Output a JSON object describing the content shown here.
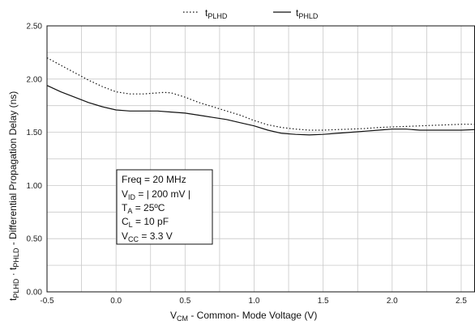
{
  "chart_data": {
    "type": "line",
    "xlim": [
      -0.5,
      2.6
    ],
    "ylim": [
      0.0,
      2.5
    ],
    "x_ticks": [
      -0.5,
      0.0,
      0.5,
      1.0,
      1.5,
      2.0,
      2.5
    ],
    "x_tick_labels": [
      "-0.5",
      "0.0",
      "0.5",
      "1.0",
      "1.5",
      "2.0",
      "2.5"
    ],
    "y_ticks": [
      0.0,
      0.5,
      1.0,
      1.5,
      2.0,
      2.5
    ],
    "y_tick_labels": [
      "0.00",
      "0.50",
      "1.00",
      "1.50",
      "2.00",
      "2.50"
    ],
    "grid": true,
    "xlabel": {
      "main": "V",
      "sub": "CM",
      "rest": " - Common- Mode Voltage (V)"
    },
    "ylabel": {
      "p1": "t",
      "s1": "PLHD",
      "p2": " · t",
      "s2": "PHLD",
      "rest": " - Differential Propagation Delay (ns)"
    },
    "legend_position": "top-center",
    "series": [
      {
        "name": {
          "main": "t",
          "sub": "PLHD"
        },
        "style": "dotted",
        "x": [
          -0.5,
          -0.4,
          -0.3,
          -0.2,
          -0.1,
          0.0,
          0.1,
          0.2,
          0.3,
          0.35,
          0.4,
          0.5,
          0.6,
          0.7,
          0.8,
          0.9,
          1.0,
          1.1,
          1.2,
          1.3,
          1.4,
          1.5,
          1.6,
          1.7,
          1.8,
          1.9,
          2.0,
          2.1,
          2.2,
          2.3,
          2.4,
          2.5,
          2.6
        ],
        "y": [
          2.2,
          2.13,
          2.06,
          1.99,
          1.93,
          1.88,
          1.86,
          1.86,
          1.87,
          1.875,
          1.87,
          1.83,
          1.78,
          1.74,
          1.7,
          1.66,
          1.61,
          1.57,
          1.545,
          1.53,
          1.52,
          1.52,
          1.525,
          1.53,
          1.535,
          1.545,
          1.55,
          1.555,
          1.56,
          1.565,
          1.57,
          1.575,
          1.575
        ]
      },
      {
        "name": {
          "main": "t",
          "sub": "PHLD"
        },
        "style": "solid",
        "x": [
          -0.5,
          -0.4,
          -0.3,
          -0.2,
          -0.1,
          0.0,
          0.1,
          0.2,
          0.3,
          0.4,
          0.5,
          0.6,
          0.7,
          0.8,
          0.9,
          1.0,
          1.1,
          1.2,
          1.3,
          1.4,
          1.5,
          1.6,
          1.7,
          1.8,
          1.9,
          2.0,
          2.1,
          2.2,
          2.3,
          2.4,
          2.5,
          2.6
        ],
        "y": [
          1.94,
          1.88,
          1.83,
          1.78,
          1.74,
          1.71,
          1.7,
          1.7,
          1.7,
          1.69,
          1.68,
          1.66,
          1.64,
          1.62,
          1.59,
          1.56,
          1.52,
          1.49,
          1.48,
          1.475,
          1.48,
          1.49,
          1.5,
          1.51,
          1.52,
          1.53,
          1.53,
          1.52,
          1.52,
          1.52,
          1.52,
          1.525
        ]
      }
    ]
  },
  "conditions": [
    {
      "main": "Freq = 20 MHz",
      "sub": "",
      "rest": ""
    },
    {
      "main": "V",
      "sub": "ID",
      "rest": " = | 200 mV |"
    },
    {
      "main": "T",
      "sub": "A",
      "rest": "   = 25ºC"
    },
    {
      "main": "C",
      "sub": "L",
      "rest": "   = 10 pF"
    },
    {
      "main": "V",
      "sub": "CC",
      "rest": " = 3.3 V"
    }
  ]
}
